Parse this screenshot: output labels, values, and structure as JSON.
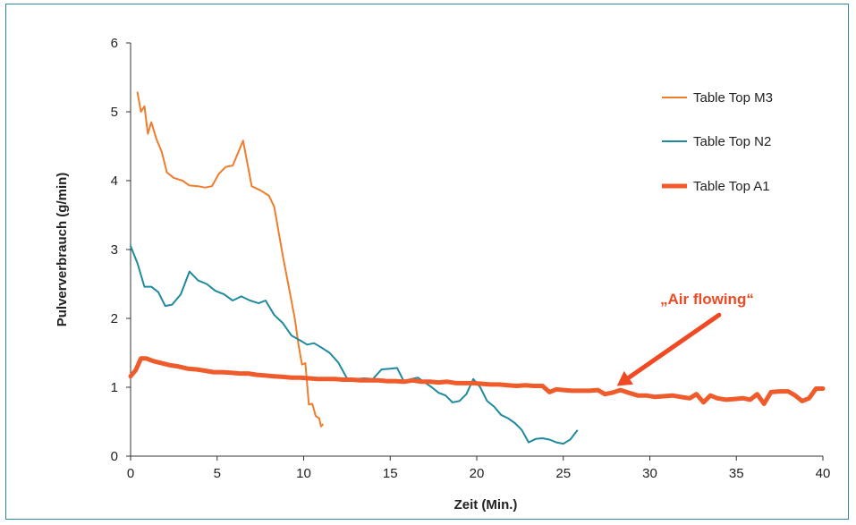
{
  "chart_data": {
    "type": "line",
    "xlabel": "Zeit (Min.)",
    "ylabel": "Pulververbrauch (g/min)",
    "xlim": [
      0,
      40
    ],
    "ylim": [
      0,
      6
    ],
    "xticks": [
      "0",
      "5",
      "10",
      "15",
      "20",
      "25",
      "30",
      "35",
      "40"
    ],
    "yticks": [
      "0",
      "1",
      "2",
      "3",
      "4",
      "5",
      "6"
    ],
    "grid": false,
    "legend_position": "top-right",
    "series": [
      {
        "name": "Table Top M3",
        "color": "#ee7d2d",
        "width": 2,
        "points": [
          [
            0.4,
            5.28
          ],
          [
            0.6,
            5.0
          ],
          [
            0.8,
            5.08
          ],
          [
            1.0,
            4.68
          ],
          [
            1.2,
            4.85
          ],
          [
            1.5,
            4.6
          ],
          [
            1.8,
            4.42
          ],
          [
            2.1,
            4.12
          ],
          [
            2.5,
            4.04
          ],
          [
            3.0,
            4.0
          ],
          [
            3.4,
            3.93
          ],
          [
            3.9,
            3.92
          ],
          [
            4.3,
            3.9
          ],
          [
            4.7,
            3.92
          ],
          [
            5.1,
            4.1
          ],
          [
            5.5,
            4.2
          ],
          [
            5.9,
            4.22
          ],
          [
            6.5,
            4.58
          ],
          [
            7.0,
            3.92
          ],
          [
            7.5,
            3.86
          ],
          [
            8.0,
            3.78
          ],
          [
            8.3,
            3.62
          ],
          [
            8.8,
            2.9
          ],
          [
            9.2,
            2.38
          ],
          [
            9.5,
            1.98
          ],
          [
            9.7,
            1.62
          ],
          [
            9.9,
            1.33
          ],
          [
            10.1,
            1.35
          ],
          [
            10.3,
            0.75
          ],
          [
            10.5,
            0.76
          ],
          [
            10.7,
            0.58
          ],
          [
            10.9,
            0.55
          ],
          [
            11.0,
            0.43
          ],
          [
            11.1,
            0.46
          ]
        ]
      },
      {
        "name": "Table Top N2",
        "color": "#1f8a9e",
        "width": 2,
        "points": [
          [
            0,
            3.05
          ],
          [
            0.4,
            2.8
          ],
          [
            0.8,
            2.46
          ],
          [
            1.2,
            2.46
          ],
          [
            1.6,
            2.38
          ],
          [
            2.0,
            2.18
          ],
          [
            2.4,
            2.2
          ],
          [
            2.9,
            2.35
          ],
          [
            3.4,
            2.68
          ],
          [
            3.9,
            2.55
          ],
          [
            4.4,
            2.5
          ],
          [
            4.9,
            2.4
          ],
          [
            5.4,
            2.35
          ],
          [
            5.9,
            2.26
          ],
          [
            6.4,
            2.32
          ],
          [
            6.9,
            2.26
          ],
          [
            7.4,
            2.22
          ],
          [
            7.8,
            2.26
          ],
          [
            8.3,
            2.05
          ],
          [
            8.8,
            1.93
          ],
          [
            9.3,
            1.75
          ],
          [
            9.8,
            1.68
          ],
          [
            10.2,
            1.62
          ],
          [
            10.6,
            1.64
          ],
          [
            11.0,
            1.58
          ],
          [
            11.5,
            1.5
          ],
          [
            12.0,
            1.36
          ],
          [
            12.5,
            1.13
          ],
          [
            13.0,
            1.12
          ],
          [
            13.5,
            1.13
          ],
          [
            14.0,
            1.12
          ],
          [
            14.5,
            1.26
          ],
          [
            15.0,
            1.27
          ],
          [
            15.4,
            1.28
          ],
          [
            15.8,
            1.08
          ],
          [
            16.2,
            1.12
          ],
          [
            16.6,
            1.14
          ],
          [
            17.0,
            1.07
          ],
          [
            17.4,
            1.0
          ],
          [
            17.8,
            0.92
          ],
          [
            18.2,
            0.88
          ],
          [
            18.6,
            0.78
          ],
          [
            19.0,
            0.8
          ],
          [
            19.4,
            0.9
          ],
          [
            19.8,
            1.12
          ],
          [
            20.2,
            1.0
          ],
          [
            20.6,
            0.8
          ],
          [
            21.0,
            0.72
          ],
          [
            21.4,
            0.6
          ],
          [
            21.8,
            0.55
          ],
          [
            22.2,
            0.48
          ],
          [
            22.6,
            0.38
          ],
          [
            23.0,
            0.2
          ],
          [
            23.4,
            0.25
          ],
          [
            23.8,
            0.26
          ],
          [
            24.2,
            0.24
          ],
          [
            24.6,
            0.2
          ],
          [
            25.0,
            0.18
          ],
          [
            25.4,
            0.24
          ],
          [
            25.8,
            0.37
          ]
        ]
      },
      {
        "name": "Table Top A1",
        "color": "#ef5b2a",
        "width": 5,
        "points": [
          [
            0,
            1.16
          ],
          [
            0.3,
            1.25
          ],
          [
            0.6,
            1.42
          ],
          [
            0.9,
            1.42
          ],
          [
            1.3,
            1.38
          ],
          [
            1.8,
            1.35
          ],
          [
            2.3,
            1.32
          ],
          [
            2.8,
            1.3
          ],
          [
            3.3,
            1.27
          ],
          [
            3.8,
            1.26
          ],
          [
            4.3,
            1.24
          ],
          [
            4.8,
            1.22
          ],
          [
            5.3,
            1.22
          ],
          [
            5.8,
            1.21
          ],
          [
            6.3,
            1.2
          ],
          [
            6.8,
            1.2
          ],
          [
            7.3,
            1.18
          ],
          [
            7.8,
            1.17
          ],
          [
            8.3,
            1.16
          ],
          [
            8.8,
            1.15
          ],
          [
            9.3,
            1.14
          ],
          [
            9.8,
            1.14
          ],
          [
            10.3,
            1.13
          ],
          [
            10.8,
            1.12
          ],
          [
            11.3,
            1.12
          ],
          [
            11.8,
            1.12
          ],
          [
            12.3,
            1.11
          ],
          [
            12.8,
            1.11
          ],
          [
            13.3,
            1.1
          ],
          [
            13.8,
            1.1
          ],
          [
            14.3,
            1.1
          ],
          [
            14.8,
            1.09
          ],
          [
            15.3,
            1.09
          ],
          [
            15.8,
            1.08
          ],
          [
            16.3,
            1.1
          ],
          [
            16.8,
            1.08
          ],
          [
            17.3,
            1.08
          ],
          [
            17.8,
            1.07
          ],
          [
            18.3,
            1.08
          ],
          [
            18.8,
            1.06
          ],
          [
            19.3,
            1.06
          ],
          [
            19.8,
            1.06
          ],
          [
            20.3,
            1.05
          ],
          [
            20.8,
            1.04
          ],
          [
            21.3,
            1.04
          ],
          [
            21.8,
            1.03
          ],
          [
            22.3,
            1.02
          ],
          [
            22.8,
            1.03
          ],
          [
            23.3,
            1.02
          ],
          [
            23.8,
            1.02
          ],
          [
            24.2,
            0.93
          ],
          [
            24.6,
            0.97
          ],
          [
            25.0,
            0.96
          ],
          [
            25.5,
            0.95
          ],
          [
            26.0,
            0.95
          ],
          [
            26.5,
            0.95
          ],
          [
            27.0,
            0.96
          ],
          [
            27.4,
            0.9
          ],
          [
            27.8,
            0.92
          ],
          [
            28.3,
            0.96
          ],
          [
            28.8,
            0.92
          ],
          [
            29.3,
            0.88
          ],
          [
            29.8,
            0.88
          ],
          [
            30.3,
            0.86
          ],
          [
            30.8,
            0.87
          ],
          [
            31.3,
            0.88
          ],
          [
            31.8,
            0.86
          ],
          [
            32.3,
            0.84
          ],
          [
            32.7,
            0.9
          ],
          [
            33.1,
            0.78
          ],
          [
            33.5,
            0.88
          ],
          [
            33.9,
            0.84
          ],
          [
            34.4,
            0.82
          ],
          [
            34.9,
            0.83
          ],
          [
            35.4,
            0.84
          ],
          [
            35.8,
            0.82
          ],
          [
            36.2,
            0.9
          ],
          [
            36.6,
            0.76
          ],
          [
            37.0,
            0.93
          ],
          [
            37.5,
            0.94
          ],
          [
            38.0,
            0.94
          ],
          [
            38.4,
            0.88
          ],
          [
            38.8,
            0.8
          ],
          [
            39.2,
            0.84
          ],
          [
            39.6,
            0.98
          ],
          [
            40.0,
            0.98
          ]
        ]
      }
    ],
    "annotation": {
      "text": "„Air flowing“",
      "color": "#ef4a24",
      "arrow_from": [
        34.0,
        2.05
      ],
      "arrow_to": [
        28.1,
        1.02
      ]
    }
  }
}
